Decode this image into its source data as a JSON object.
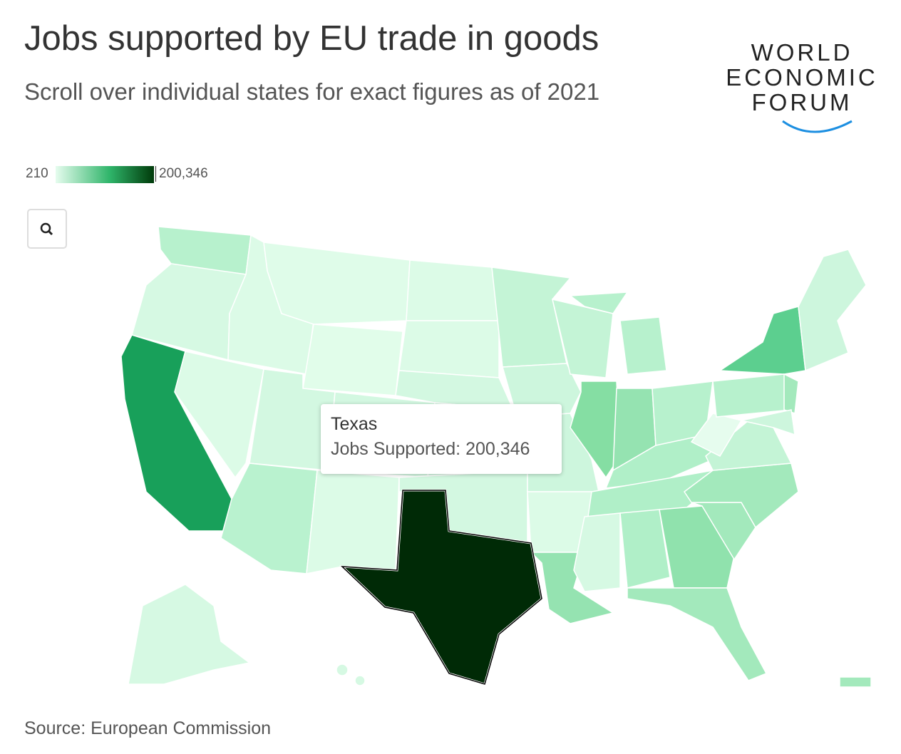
{
  "header": {
    "title": "Jobs supported by EU trade in goods",
    "subtitle": "Scroll over individual states for exact figures as of 2021"
  },
  "logo": {
    "lines": [
      "WORLD",
      "ECONOMIC",
      "FORUM"
    ]
  },
  "legend": {
    "min": "210",
    "max": "200,346"
  },
  "tooltip": {
    "state": "Texas",
    "label": "Jobs Supported:",
    "value": "200,346"
  },
  "footer": {
    "source": "Source: European Commission"
  }
}
